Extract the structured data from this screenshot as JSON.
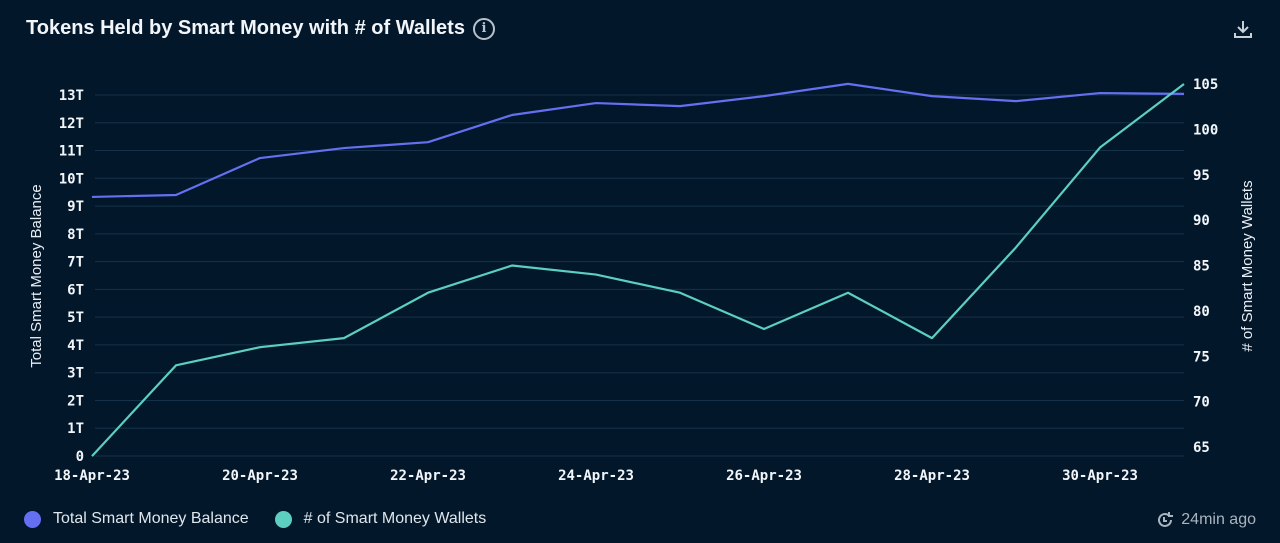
{
  "header": {
    "title": "Tokens Held by Smart Money with # of Wallets",
    "info_icon": "info-icon",
    "download_icon": "download-icon"
  },
  "footer": {
    "updated": "24min ago",
    "updated_icon": "clock-refresh-icon"
  },
  "chart_data": {
    "type": "line",
    "title": "Tokens Held by Smart Money with # of Wallets",
    "x": [
      "18-Apr-23",
      "19-Apr-23",
      "20-Apr-23",
      "21-Apr-23",
      "22-Apr-23",
      "23-Apr-23",
      "24-Apr-23",
      "25-Apr-23",
      "26-Apr-23",
      "27-Apr-23",
      "28-Apr-23",
      "29-Apr-23",
      "30-Apr-23",
      "1-May-23"
    ],
    "x_tick_labels": [
      "18-Apr-23",
      "20-Apr-23",
      "22-Apr-23",
      "24-Apr-23",
      "26-Apr-23",
      "28-Apr-23",
      "30-Apr-23"
    ],
    "ylabel_left": "Total Smart Money Balance",
    "ylabel_right": "# of Smart Money Wallets",
    "y_left_ticks": [
      "0",
      "1T",
      "2T",
      "3T",
      "4T",
      "5T",
      "6T",
      "7T",
      "8T",
      "9T",
      "10T",
      "11T",
      "12T",
      "13T"
    ],
    "y_right_ticks": [
      "65",
      "70",
      "75",
      "80",
      "85",
      "90",
      "95",
      "100",
      "105"
    ],
    "ylim_left": [
      0,
      13
    ],
    "ylim_right": [
      65,
      105
    ],
    "grid": true,
    "legend_position": "bottom-left",
    "series": [
      {
        "name": "Total Smart Money Balance",
        "axis": "left",
        "unit": "T",
        "color": "#6470f0",
        "values": [
          9.33,
          9.4,
          10.73,
          11.09,
          11.3,
          12.28,
          12.71,
          12.6,
          12.96,
          13.4,
          12.96,
          12.78,
          13.07,
          13.04
        ]
      },
      {
        "name": "# of Smart Money Wallets",
        "axis": "right",
        "color": "#5ccfc0",
        "values": [
          64,
          74,
          76,
          77,
          82,
          85,
          84,
          82,
          78,
          82,
          77,
          87,
          98,
          105
        ]
      }
    ]
  }
}
